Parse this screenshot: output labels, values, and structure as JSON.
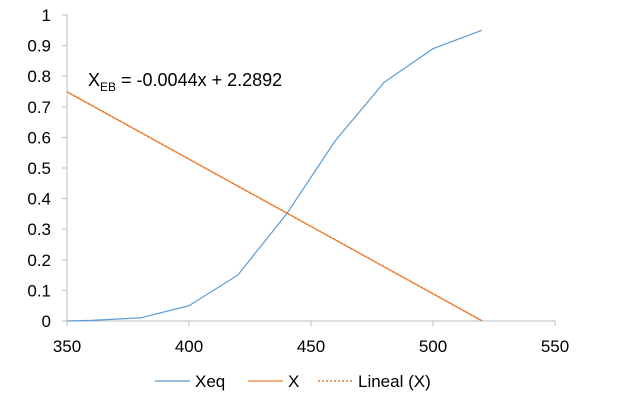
{
  "chart_data": {
    "type": "line",
    "xlim": [
      350,
      550
    ],
    "ylim": [
      0,
      1
    ],
    "x_ticks": [
      350,
      400,
      450,
      500,
      550
    ],
    "y_ticks": [
      0,
      0.1,
      0.2,
      0.3,
      0.4,
      0.5,
      0.6,
      0.7,
      0.8,
      0.9,
      1
    ],
    "x_tick_labels": [
      "350",
      "400",
      "450",
      "500",
      "550"
    ],
    "y_tick_labels": [
      "0",
      "0.1",
      "0.2",
      "0.3",
      "0.4",
      "0.5",
      "0.6",
      "0.7",
      "0.8",
      "0.9",
      "1"
    ],
    "grid": false,
    "legend_position": "bottom",
    "series": [
      {
        "name": "Xeq",
        "color": "#5b9bd5",
        "style": "solid",
        "x": [
          350,
          360,
          380,
          400,
          420,
          440,
          460,
          480,
          500,
          520
        ],
        "y": [
          0.0,
          0.002,
          0.01,
          0.05,
          0.15,
          0.35,
          0.59,
          0.78,
          0.89,
          0.95
        ]
      },
      {
        "name": "X",
        "color": "#ed7d31",
        "style": "solid",
        "x": [
          350,
          520
        ],
        "y": [
          0.749,
          0.001
        ]
      },
      {
        "name": "Lineal (X)",
        "color": "#ed7d31",
        "style": "dotted",
        "x": [
          350,
          520
        ],
        "y": [
          0.749,
          0.001
        ]
      }
    ],
    "annotation": {
      "var": "X",
      "sub": "EB",
      "equation": " = -0.0044x + 2.2892"
    }
  }
}
